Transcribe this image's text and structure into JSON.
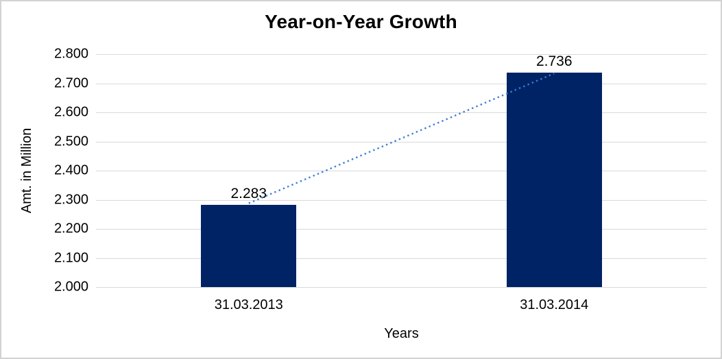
{
  "chart_data": {
    "type": "bar",
    "title": "Year-on-Year Growth",
    "xlabel": "Years",
    "ylabel": "Amt. in Million",
    "categories": [
      "31.03.2013",
      "31.03.2014"
    ],
    "values": [
      2.283,
      2.736
    ],
    "value_labels": [
      "2.283",
      "2.736"
    ],
    "ylim": [
      2.0,
      2.8
    ],
    "ytick_labels": [
      "2.800",
      "2.700",
      "2.600",
      "2.500",
      "2.400",
      "2.300",
      "2.200",
      "2.100",
      "2.000"
    ],
    "grid": "horizontal",
    "legend": "none",
    "trendline": {
      "style": "dotted",
      "from_value": 2.283,
      "to_value": 2.736,
      "color": "#3c7dd7"
    },
    "colors": {
      "bar": "#002365",
      "gridline": "#d9d9d9",
      "text": "#000000",
      "background": "#ffffff",
      "border": "#d2d2d2"
    }
  }
}
